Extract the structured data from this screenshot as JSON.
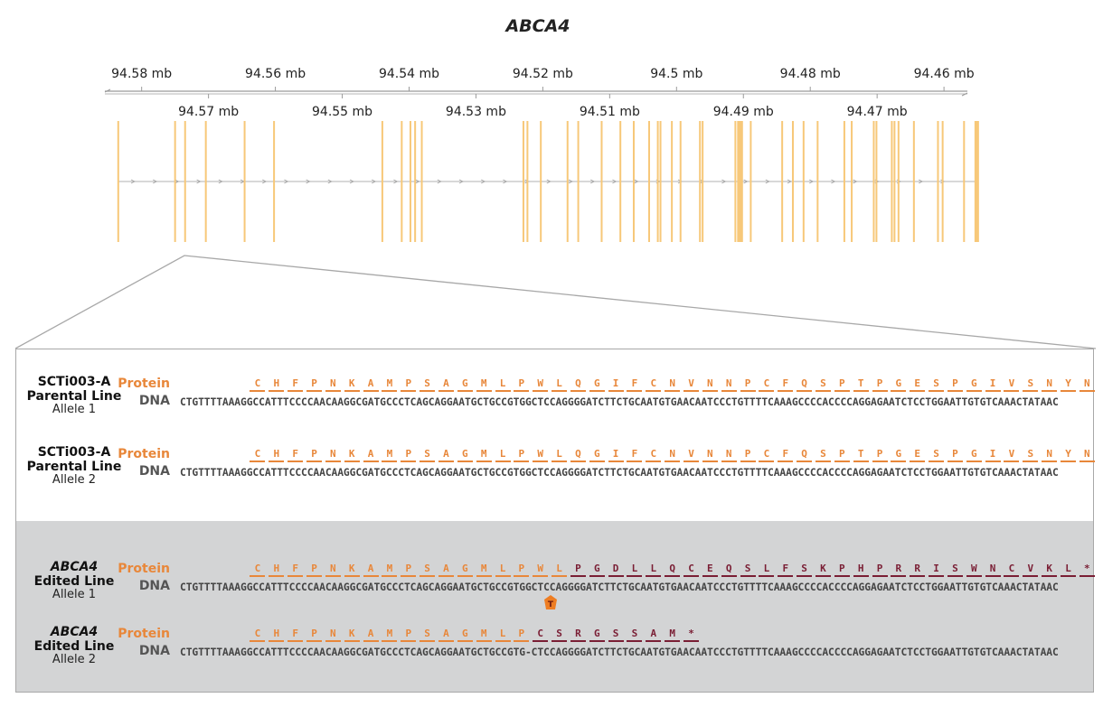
{
  "title": "ABCA4",
  "axis": {
    "upper_ticks": [
      "94.58 mb",
      "94.56 mb",
      "94.54 mb",
      "94.52 mb",
      "94.5 mb",
      "94.48 mb",
      "94.46 mb"
    ],
    "lower_ticks": [
      "94.57 mb",
      "94.55 mb",
      "94.53 mb",
      "94.51 mb",
      "94.49 mb",
      "94.47 mb"
    ],
    "range_mb": [
      94.5855,
      94.4565
    ]
  },
  "exons_mb": [
    94.5835,
    94.575,
    94.5735,
    94.5704,
    94.5646,
    94.5602,
    94.544,
    94.5411,
    94.5398,
    94.5391,
    94.5381,
    94.5229,
    94.5223,
    94.5203,
    94.5163,
    94.5147,
    94.5112,
    94.5084,
    94.5064,
    94.5041,
    94.5028,
    94.5024,
    94.5007,
    94.4994,
    94.4965,
    94.4961,
    94.4912,
    94.4906,
    94.4902,
    94.4889,
    94.4842,
    94.4826,
    94.481,
    94.4789,
    94.4749,
    94.4738,
    94.4705,
    94.4701,
    94.4678,
    94.4674,
    94.4668,
    94.4645,
    94.4609,
    94.4602,
    94.457,
    94.4551
  ],
  "colors": {
    "exon": "#f7c879",
    "wildtype": "#e8873a",
    "frameshift": "#7a1e34",
    "marker": "#ee7d22"
  },
  "labels": {
    "protein": "Protein",
    "dna": "DNA"
  },
  "rows": [
    {
      "line_name": "SCTi003-A",
      "line_name_italic": false,
      "line_type": "Parental Line",
      "allele": "Allele 1",
      "dna": "CTGTTTTAAAGGCCATTTCCCCAACAAGGCGATGCCCTCAGCAGGAATGCTGCCGTGGCTCCAGGGGATCTTCTGCAATGTGAACAATCCCTGTTTTCAAAGCCCCACCCCAGGAGAATCTCCTGGAATTGTGTCAAACTATAAC",
      "protein_wt": [
        "C",
        "H",
        "F",
        "P",
        "N",
        "K",
        "A",
        "M",
        "P",
        "S",
        "A",
        "G",
        "M",
        "L",
        "P",
        "W",
        "L",
        "Q",
        "G",
        "I",
        "F",
        "C",
        "N",
        "V",
        "N",
        "N",
        "P",
        "C",
        "F",
        "Q",
        "S",
        "P",
        "T",
        "P",
        "G",
        "E",
        "S",
        "P",
        "G",
        "I",
        "V",
        "S",
        "N",
        "Y",
        "N"
      ],
      "protein_mut": []
    },
    {
      "line_name": "SCTi003-A",
      "line_name_italic": false,
      "line_type": "Parental Line",
      "allele": "Allele 2",
      "dna": "CTGTTTTAAAGGCCATTTCCCCAACAAGGCGATGCCCTCAGCAGGAATGCTGCCGTGGCTCCAGGGGATCTTCTGCAATGTGAACAATCCCTGTTTTCAAAGCCCCACCCCAGGAGAATCTCCTGGAATTGTGTCAAACTATAAC",
      "protein_wt": [
        "C",
        "H",
        "F",
        "P",
        "N",
        "K",
        "A",
        "M",
        "P",
        "S",
        "A",
        "G",
        "M",
        "L",
        "P",
        "W",
        "L",
        "Q",
        "G",
        "I",
        "F",
        "C",
        "N",
        "V",
        "N",
        "N",
        "P",
        "C",
        "F",
        "Q",
        "S",
        "P",
        "T",
        "P",
        "G",
        "E",
        "S",
        "P",
        "G",
        "I",
        "V",
        "S",
        "N",
        "Y",
        "N"
      ],
      "protein_mut": []
    },
    {
      "line_name": "ABCA4",
      "line_name_italic": true,
      "line_type": "Edited Line",
      "allele": "Allele 1",
      "dna": "CTGTTTTAAAGGCCATTTCCCCAACAAGGCGATGCCCTCAGCAGGAATGCTGCCGTGGCTCCAGGGGATCTTCTGCAATGTGAACAATCCCTGTTTTCAAAGCCCCACCCCAGGAGAATCTCCTGGAATTGTGTCAAACTATAAC",
      "protein_wt": [
        "C",
        "H",
        "F",
        "P",
        "N",
        "K",
        "A",
        "M",
        "P",
        "S",
        "A",
        "G",
        "M",
        "L",
        "P",
        "W",
        "L"
      ],
      "protein_mut": [
        "P",
        "G",
        "D",
        "L",
        "L",
        "Q",
        "C",
        "E",
        "Q",
        "S",
        "L",
        "F",
        "S",
        "K",
        "P",
        "H",
        "P",
        "R",
        "R",
        "I",
        "S",
        "W",
        "N",
        "C",
        "V",
        "K",
        "L",
        "*"
      ],
      "insertion": "T"
    },
    {
      "line_name": "ABCA4",
      "line_name_italic": true,
      "line_type": "Edited Line",
      "allele": "Allele 2",
      "dna": "CTGTTTTAAAGGCCATTTCCCCAACAAGGCGATGCCCTCAGCAGGAATGCTGCCGTG-CTCCAGGGGATCTTCTGCAATGTGAACAATCCCTGTTTTCAAAGCCCCACCCCAGGAGAATCTCCTGGAATTGTGTCAAACTATAAC",
      "protein_wt": [
        "C",
        "H",
        "F",
        "P",
        "N",
        "K",
        "A",
        "M",
        "P",
        "S",
        "A",
        "G",
        "M",
        "L",
        "P"
      ],
      "protein_mut": [
        "C",
        "S",
        "R",
        "G",
        "S",
        "S",
        "A",
        "M",
        "*"
      ]
    }
  ]
}
